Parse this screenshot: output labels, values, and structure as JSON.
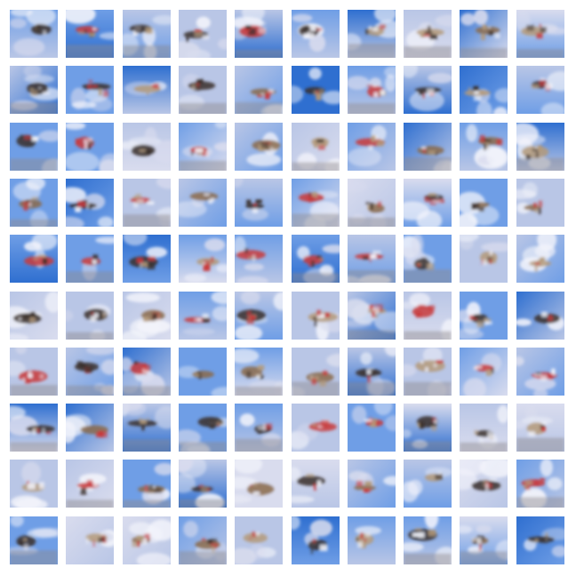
{
  "figure": {
    "grid": {
      "rows": 10,
      "cols": 10
    },
    "palette": {
      "sky_deep": "#2f6fd0",
      "sky_mid": "#6f9ee6",
      "sky_light": "#b9c6e6",
      "sky_haze": "#d9dcee",
      "cloud": "#f3f4fb",
      "object_red": "#c9383a",
      "object_dark": "#3a2f2a",
      "object_brown": "#8a6a4a",
      "object_tan": "#b49a7a",
      "ground_gray": "#8f8a8e"
    }
  }
}
